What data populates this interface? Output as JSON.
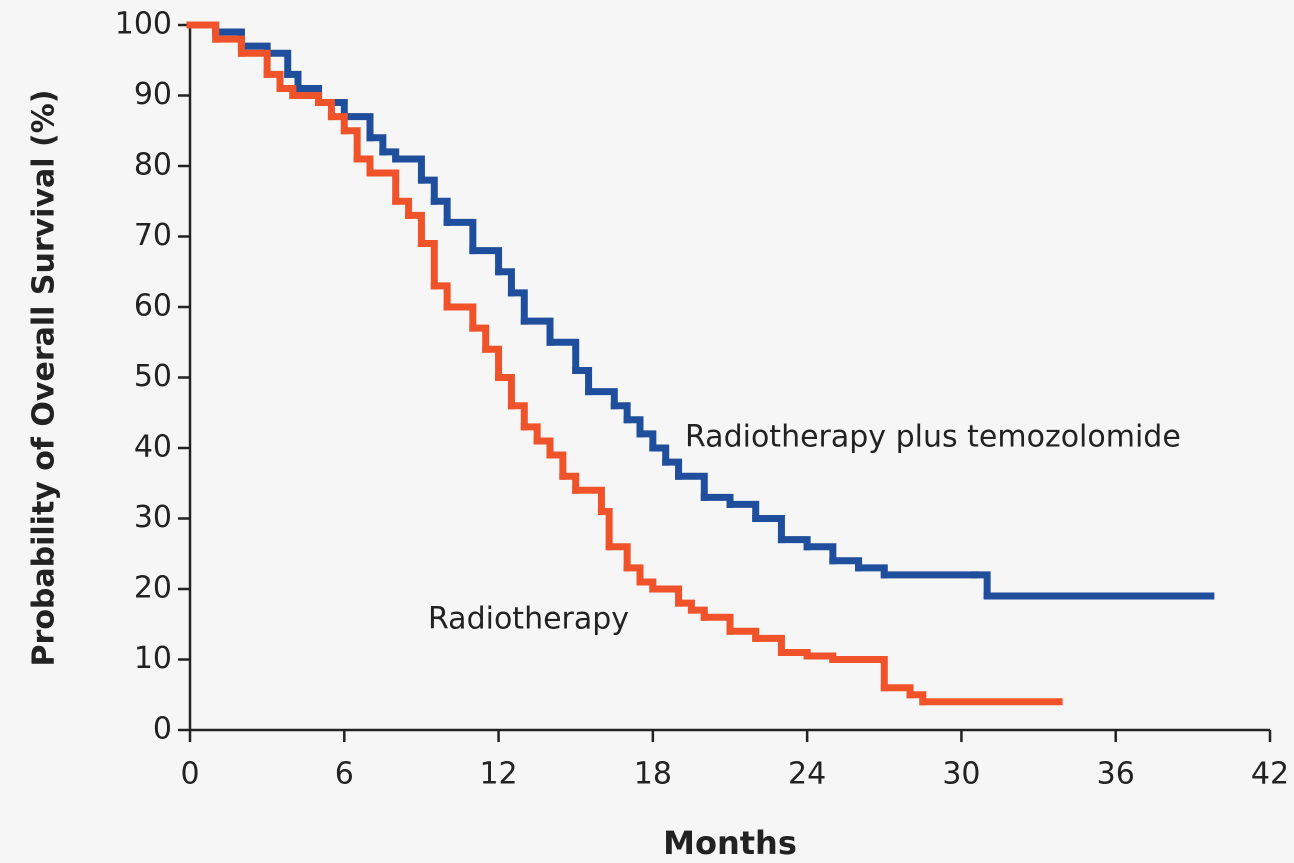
{
  "chart_data": {
    "type": "step",
    "xlabel": "Months",
    "ylabel": "Probability of Overall Survival (%)",
    "xlim": [
      0,
      42
    ],
    "xticks": [
      0,
      6,
      12,
      18,
      24,
      30,
      36,
      42
    ],
    "ylim": [
      0,
      100
    ],
    "yticks": [
      0,
      10,
      20,
      30,
      40,
      50,
      60,
      70,
      80,
      90,
      100
    ],
    "grid": false,
    "series": [
      {
        "name": "Radiotherapy plus temozolomide",
        "color": "#1f4e9c",
        "x": [
          0,
          1,
          2,
          3,
          3.8,
          4.2,
          5,
          6,
          7,
          7.5,
          8,
          9,
          9.5,
          10,
          11,
          12,
          12.5,
          13,
          14,
          15,
          15.5,
          16.5,
          17,
          17.5,
          18,
          18.5,
          19,
          20,
          21,
          22,
          23,
          24,
          25,
          26,
          27,
          30.5,
          31,
          39.7
        ],
        "values": [
          100,
          99,
          97,
          96,
          93,
          91,
          89,
          87,
          84,
          82,
          81,
          78,
          75,
          72,
          68,
          65,
          62,
          58,
          55,
          51,
          48,
          46,
          44,
          42,
          40,
          38,
          36,
          33,
          32,
          30,
          27,
          26,
          24,
          23,
          22,
          22,
          19,
          19
        ]
      },
      {
        "name": "Radiotherapy",
        "color": "#f0522a",
        "x": [
          0,
          1,
          2,
          3,
          3.5,
          4,
          5,
          5.5,
          6,
          6.5,
          7,
          8,
          8.5,
          9,
          9.5,
          10,
          11,
          11.5,
          12,
          12.5,
          13,
          13.5,
          14,
          14.5,
          15,
          16,
          16.3,
          17,
          17.5,
          18,
          19,
          19.5,
          20,
          21,
          22,
          23,
          24,
          25,
          26.5,
          27,
          28,
          28.5,
          33.8
        ],
        "values": [
          100,
          98,
          96,
          93,
          91,
          90,
          89,
          87,
          85,
          81,
          79,
          75,
          73,
          69,
          63,
          60,
          57,
          54,
          50,
          46,
          43,
          41,
          39,
          36,
          34,
          31,
          26,
          23,
          21,
          20,
          18,
          17,
          16,
          14,
          13,
          11,
          10.5,
          10,
          10,
          6,
          5,
          4,
          4
        ]
      }
    ]
  }
}
